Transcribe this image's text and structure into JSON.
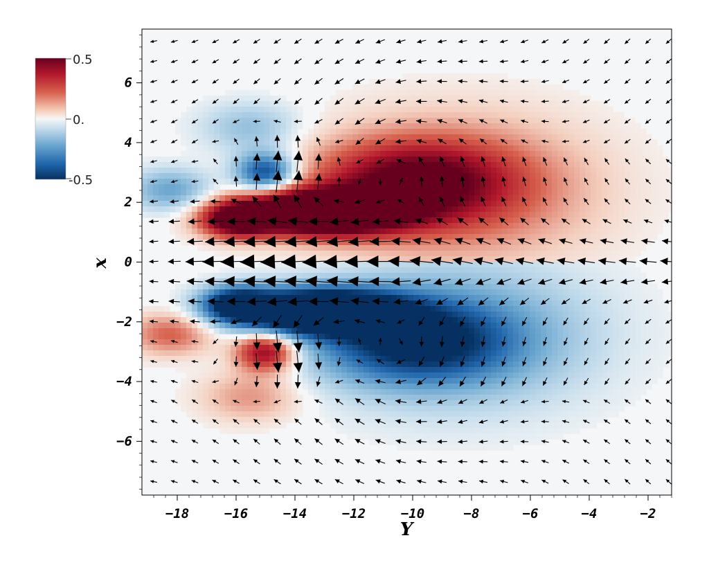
{
  "chart_data": {
    "type": "heatmap",
    "overlay": "vector-field",
    "xlabel": "Y",
    "ylabel": "x",
    "xlim": [
      -19.2,
      -1.2
    ],
    "ylim": [
      -7.8,
      7.8
    ],
    "xticks": [
      -18,
      -16,
      -14,
      -12,
      -10,
      -8,
      -6,
      -4,
      -2
    ],
    "yticks": [
      -6,
      -4,
      -2,
      0,
      2,
      4,
      6
    ],
    "xtick_labels": [
      "−18",
      "−16",
      "−14",
      "−12",
      "−10",
      "−8",
      "−6",
      "−4",
      "−2"
    ],
    "ytick_labels": [
      "−6",
      "−4",
      "−2",
      "0",
      "2",
      "4",
      "6"
    ],
    "grid": false,
    "colorbar": {
      "min": -0.5,
      "max": 0.5,
      "labels": [
        "0.5",
        "0.",
        "-0.5"
      ],
      "colormap": "diverging red-white-blue",
      "colors": {
        "max": "#67001f",
        "mid": "#f7f7f7",
        "min": "#053061"
      }
    },
    "arrow_grid": {
      "x_from": -18.8,
      "x_step": 0.7,
      "y_from": -7.35,
      "y_step": 0.67,
      "color": "#000000"
    }
  }
}
